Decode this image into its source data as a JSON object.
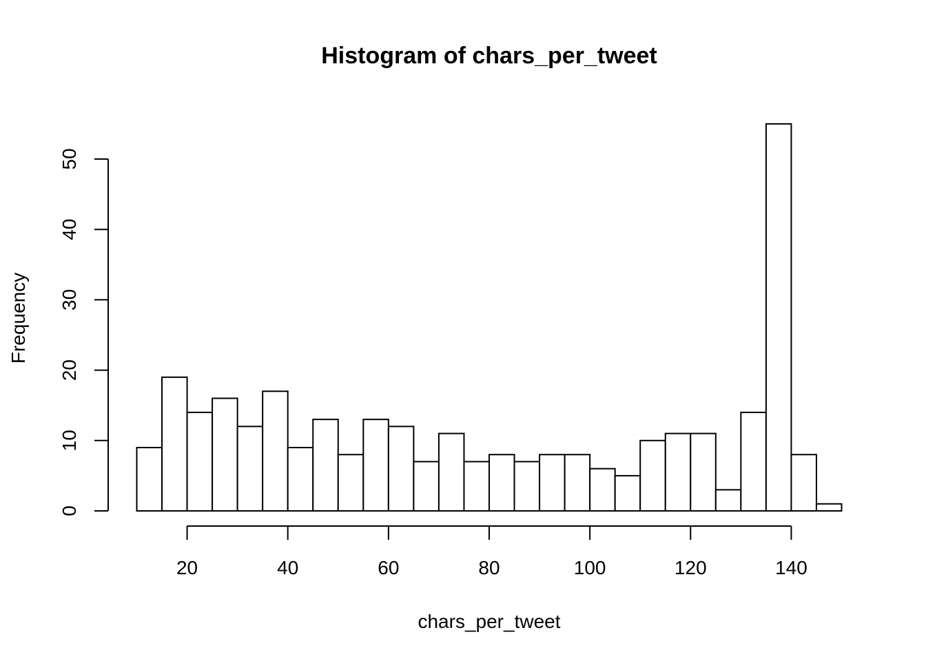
{
  "chart_data": {
    "type": "bar",
    "title": "Histogram of chars_per_tweet",
    "xlabel": "chars_per_tweet",
    "ylabel": "Frequency",
    "bin_edges": [
      10,
      15,
      20,
      25,
      30,
      35,
      40,
      45,
      50,
      55,
      60,
      65,
      70,
      75,
      80,
      85,
      90,
      95,
      100,
      105,
      110,
      115,
      120,
      125,
      130,
      135,
      140,
      145,
      150
    ],
    "values": [
      9,
      19,
      14,
      16,
      12,
      17,
      9,
      13,
      8,
      13,
      12,
      7,
      11,
      7,
      8,
      7,
      8,
      8,
      6,
      5,
      10,
      11,
      11,
      3,
      14,
      55,
      8,
      1
    ],
    "x_ticks": [
      20,
      40,
      60,
      80,
      100,
      120,
      140
    ],
    "y_ticks": [
      0,
      10,
      20,
      30,
      40,
      50
    ],
    "xlim": [
      10,
      150
    ],
    "ylim": [
      0,
      55
    ],
    "grid": false,
    "bar_fill": "#ffffff",
    "bar_stroke": "#000000"
  }
}
